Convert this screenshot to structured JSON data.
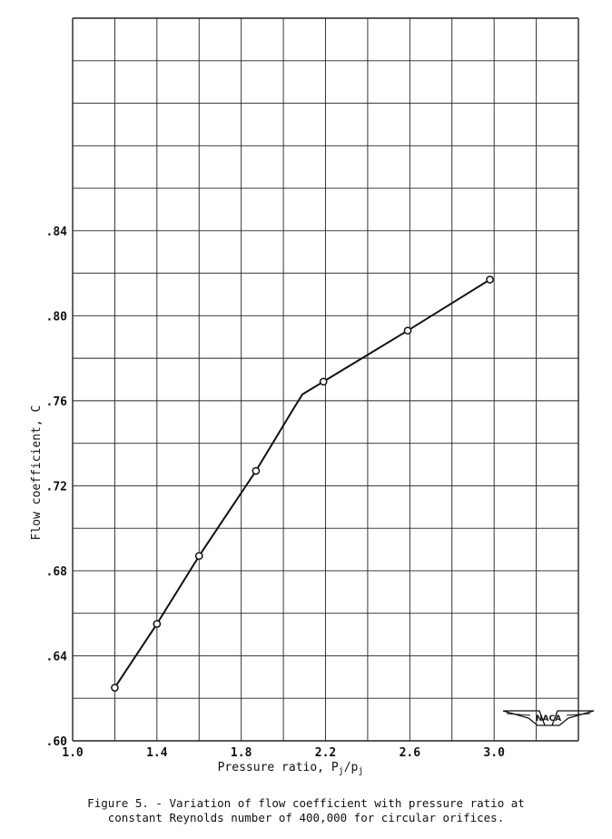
{
  "chart_data": {
    "type": "line",
    "xlabel": "Pressure ratio, P",
    "xlabel_sub1": "j",
    "xlabel_mid": "/p",
    "xlabel_sub2": "j",
    "ylabel": "Flow coefficient, C",
    "xlim": [
      1.0,
      3.4
    ],
    "ylim": [
      0.6,
      0.84
    ],
    "x_ticks": [
      {
        "value": 1.0,
        "label": "1.0"
      },
      {
        "value": 1.4,
        "label": "1.4"
      },
      {
        "value": 1.8,
        "label": "1.8"
      },
      {
        "value": 2.2,
        "label": "2.2"
      },
      {
        "value": 2.6,
        "label": "2.6"
      },
      {
        "value": 3.0,
        "label": "3.0"
      }
    ],
    "y_ticks": [
      {
        "value": 0.6,
        "label": ".60"
      },
      {
        "value": 0.64,
        "label": ".64"
      },
      {
        "value": 0.68,
        "label": ".68"
      },
      {
        "value": 0.72,
        "label": ".72"
      },
      {
        "value": 0.76,
        "label": ".76"
      },
      {
        "value": 0.8,
        "label": ".80"
      },
      {
        "value": 0.84,
        "label": ".84"
      }
    ],
    "grid": true,
    "x_grid_step": 0.2,
    "y_grid_step": 0.02,
    "plot_top_value": 0.94,
    "series": [
      {
        "x": [
          1.2,
          1.4,
          1.6,
          1.87,
          2.19,
          2.59,
          2.98
        ],
        "y": [
          0.625,
          0.655,
          0.687,
          0.727,
          0.769,
          0.793,
          0.817
        ],
        "marker": "circle"
      }
    ],
    "line_path": {
      "x": [
        1.2,
        1.4,
        1.6,
        1.87,
        2.04,
        2.09,
        2.19,
        2.59,
        2.98
      ],
      "y": [
        0.625,
        0.655,
        0.687,
        0.727,
        0.755,
        0.763,
        0.769,
        0.793,
        0.817
      ]
    }
  },
  "logo_text": "NACA",
  "caption": {
    "line1": "Figure 5. - Variation of flow coefficient with pressure ratio at",
    "line2": "constant Reynolds number of 400,000 for circular orifices."
  }
}
